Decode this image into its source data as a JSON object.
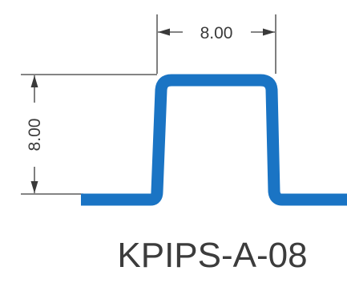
{
  "part_code": "KPIPS-A-08",
  "dimensions": {
    "width": "8.00",
    "height": "8.00"
  },
  "colors": {
    "profile": "#1a74c4",
    "dimension": "#3a3a3a",
    "background": "#ffffff"
  }
}
